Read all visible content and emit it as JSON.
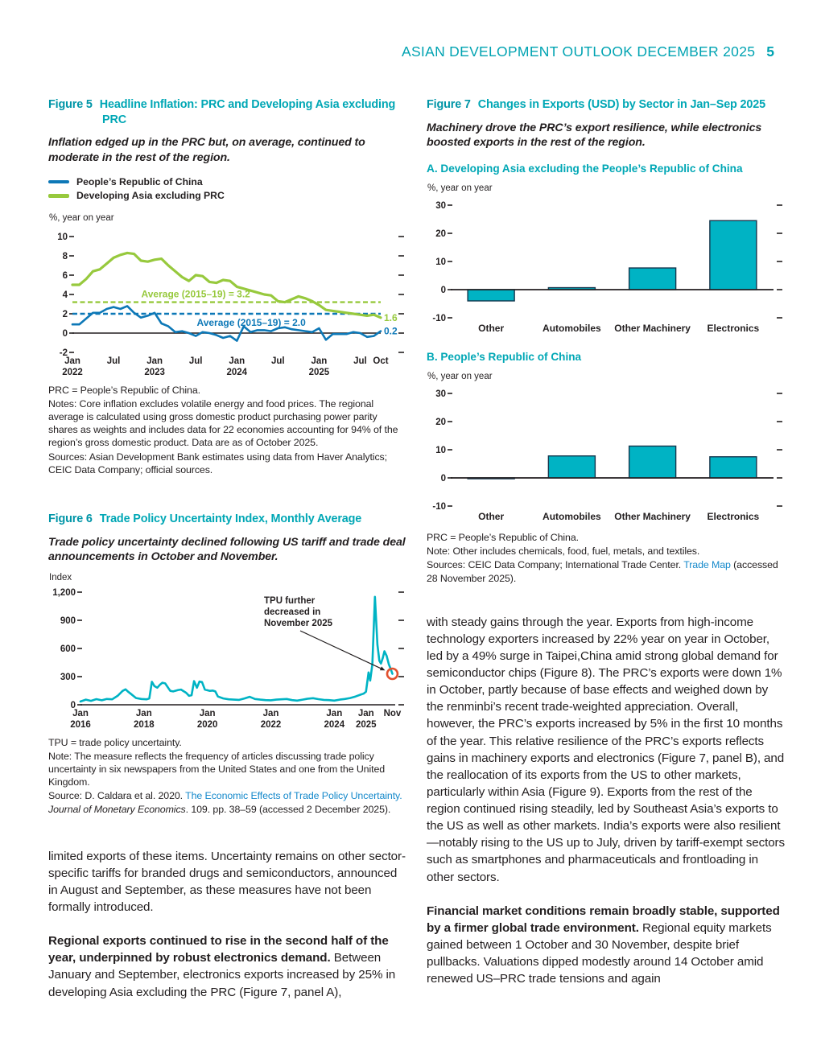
{
  "header": {
    "title": "ASIAN DEVELOPMENT OUTLOOK DECEMBER 2025",
    "page_number": "5"
  },
  "colors": {
    "teal_heading": "#00a7b5",
    "blue_line": "#0d78b7",
    "green_line": "#97c93d",
    "chart_teal": "#00b3c4",
    "red_circle": "#e2512e",
    "link_blue": "#1589cb",
    "text": "#231f20"
  },
  "figure5": {
    "label": "Figure 5",
    "title": "Headline Inflation: PRC and Developing Asia excluding PRC",
    "subtitle": "Inflation edged up in the PRC but, on average, continued to moderate in the rest of the region.",
    "legend": [
      {
        "label": "People’s Republic of China",
        "color": "#0d78b7"
      },
      {
        "label": "Developing Asia excluding PRC",
        "color": "#97c93d"
      }
    ],
    "notes": {
      "abbrev": "PRC = People’s Republic of China.",
      "note": "Notes: Core inflation excludes volatile energy and food prices. The regional average is calculated using gross domestic product purchasing power parity shares as weights and includes data for 22 economies accounting for 94% of the region’s gross domestic product. Data are as of October 2025.",
      "sources": "Sources: Asian Development Bank estimates using data from Haver Analytics; CEIC Data Company; official sources."
    }
  },
  "figure6": {
    "label": "Figure 6",
    "title": "Trade Policy Uncertainty Index, Monthly Average",
    "subtitle": "Trade policy uncertainty declined following US tariff and trade deal announcements in October and November.",
    "notes": {
      "abbrev": "TPU = trade policy uncertainty.",
      "note": "Note: The measure reflects the frequency of articles discussing trade policy uncertainty in six newspapers from the United States and one from the United Kingdom.",
      "source_segments": [
        {
          "t": "Source: D. Caldara et al. 2020. "
        },
        {
          "t": "The Economic Effects of Trade Policy Uncertainty.",
          "s": "link"
        },
        {
          "t": " "
        },
        {
          "t": "Journal of Monetary Economics",
          "s": "italic"
        },
        {
          "t": ". 109. pp. 38–59 (accessed 2 December 2025)."
        }
      ]
    }
  },
  "figure7": {
    "label": "Figure 7",
    "title": "Changes in Exports (USD) by Sector in Jan–Sep 2025",
    "subtitle": "Machinery drove the PRC’s export resilience, while electronics boosted exports in the rest of the region.",
    "panel_a_heading": "A. Developing Asia excluding the People’s Republic of China",
    "panel_b_heading": "B. People’s Republic of China",
    "notes": {
      "abbrev": "PRC = People’s Republic of China.",
      "note": "Note: Other includes chemicals, food, fuel, metals, and textiles.",
      "sources_segments": [
        {
          "t": "Sources: CEIC Data Company; International Trade Center. "
        },
        {
          "t": "Trade Map",
          "s": "link"
        },
        {
          "t": " (accessed 28 November 2025)."
        }
      ]
    }
  },
  "left_body": {
    "para1": [
      {
        "t": "limited exports of these items. Uncertainty remains on other sector-specific tariffs for branded drugs and semiconductors, announced in August and September, as these measures have not been formally introduced."
      }
    ],
    "para2": [
      {
        "t": "Regional exports continued to rise in the second half of the year, underpinned by robust electronics demand.",
        "s": "bold"
      },
      {
        "t": " Between January and September, electronics exports increased by 25% in developing Asia excluding the PRC (Figure 7, panel A),"
      }
    ]
  },
  "right_body": {
    "para1": [
      {
        "t": "with steady gains through the year. Exports from high-income technology exporters increased by 22% year on year in October, led by a 49% surge in Taipei,China amid strong global demand for semiconductor chips (Figure 8). The PRC’s exports were down 1% in October, partly because of base effects and weighed down by the renminbi’s recent trade-weighted appreciation. Overall, however, the PRC’s exports increased by 5% in the first 10 months of the year. This relative resilience of the PRC’s exports reflects gains in machinery exports and electronics (Figure 7, panel B), and the reallocation of its exports from the US to other markets, particularly within Asia (Figure 9). Exports from the rest of the region continued rising steadily, led by Southeast Asia’s exports to the US as well as other markets. India’s exports were also resilient—notably rising to the US up to July, driven by tariff-exempt sectors such as smartphones and pharmaceuticals and frontloading in other sectors."
      }
    ],
    "para2": [
      {
        "t": "Financial market conditions remain broadly stable, supported by a firmer global trade environment.",
        "s": "bold"
      },
      {
        "t": " Regional equity markets gained between 1 October and 30 November, despite brief pullbacks. Valuations dipped modestly around 14 October amid renewed US–PRC trade tensions and again"
      }
    ]
  },
  "chart_data": [
    {
      "id": "fig5",
      "type": "line",
      "title": "Headline Inflation: PRC and Developing Asia excluding PRC",
      "ylabel": "%, year on year",
      "ylim": [
        -2,
        10
      ],
      "yticks": [
        {
          "v": 10,
          "label": "10"
        },
        {
          "v": 8,
          "label": "8"
        },
        {
          "v": 6,
          "label": "6"
        },
        {
          "v": 4,
          "label": "4"
        },
        {
          "v": 2,
          "label": "2"
        },
        {
          "v": 0,
          "label": "0"
        },
        {
          "v": -2,
          "label": "-2"
        }
      ],
      "xticks": [
        {
          "i": 0,
          "l1": "Jan",
          "l2": "2022"
        },
        {
          "i": 6,
          "l1": "Jul"
        },
        {
          "i": 12,
          "l1": "Jan",
          "l2": "2023"
        },
        {
          "i": 18,
          "l1": "Jul"
        },
        {
          "i": 24,
          "l1": "Jan",
          "l2": "2024"
        },
        {
          "i": 30,
          "l1": "Jul"
        },
        {
          "i": 36,
          "l1": "Jan",
          "l2": "2025"
        },
        {
          "i": 42,
          "l1": "Jul"
        },
        {
          "i": 45,
          "l1": "Oct"
        }
      ],
      "avg_lines": [
        {
          "value": 3.2,
          "color": "#97c93d",
          "label": "Average (2015–19) = 3.2",
          "lx": 0.4,
          "above": true
        },
        {
          "value": 2.0,
          "color": "#0d78b7",
          "label": "Average (2015–19) = 2.0",
          "lx": 0.58,
          "above": false
        }
      ],
      "series": [
        {
          "name": "Developing Asia excluding PRC",
          "color": "#97c93d",
          "width": 3.2,
          "end_label": "1.6",
          "values": [
            5.0,
            5.0,
            5.6,
            6.4,
            6.6,
            7.2,
            7.8,
            8.1,
            8.3,
            8.2,
            7.5,
            7.4,
            7.6,
            7.7,
            7.0,
            6.4,
            5.8,
            5.4,
            6.0,
            5.9,
            5.3,
            5.2,
            5.5,
            5.4,
            4.8,
            4.6,
            4.4,
            4.2,
            4.0,
            3.9,
            3.3,
            3.2,
            3.5,
            3.8,
            3.6,
            3.3,
            2.9,
            2.4,
            2.3,
            2.2,
            2.1,
            2.0,
            1.9,
            1.8,
            1.9,
            1.6
          ]
        },
        {
          "name": "People’s Republic of China",
          "color": "#0d78b7",
          "width": 2.6,
          "end_label": "0.2",
          "values": [
            0.9,
            0.9,
            1.5,
            2.1,
            2.1,
            2.5,
            2.7,
            2.5,
            2.8,
            2.1,
            1.6,
            1.8,
            2.1,
            1.0,
            0.7,
            0.1,
            0.2,
            0.0,
            -0.3,
            0.1,
            0.0,
            -0.2,
            -0.5,
            -0.3,
            -0.8,
            0.7,
            0.1,
            0.3,
            0.3,
            0.2,
            0.5,
            0.6,
            0.4,
            0.3,
            0.2,
            0.1,
            0.5,
            -0.7,
            -0.1,
            -0.1,
            -0.1,
            0.1,
            0.0,
            -0.4,
            -0.3,
            0.2
          ]
        }
      ]
    },
    {
      "id": "fig6",
      "type": "line",
      "title": "Trade Policy Uncertainty Index, Monthly Average",
      "ylabel": "Index",
      "ylim": [
        0,
        1200
      ],
      "x_range": [
        2016,
        2025.92
      ],
      "yticks": [
        {
          "v": 1200,
          "label": "1,200"
        },
        {
          "v": 900,
          "label": "900"
        },
        {
          "v": 600,
          "label": "600"
        },
        {
          "v": 300,
          "label": "300"
        },
        {
          "v": 0,
          "label": "0"
        }
      ],
      "xticks": [
        {
          "x": 2016.0,
          "l1": "Jan",
          "l2": "2016"
        },
        {
          "x": 2018.0,
          "l1": "Jan",
          "l2": "2018"
        },
        {
          "x": 2020.0,
          "l1": "Jan",
          "l2": "2020"
        },
        {
          "x": 2022.0,
          "l1": "Jan",
          "l2": "2022"
        },
        {
          "x": 2024.0,
          "l1": "Jan",
          "l2": "2024"
        },
        {
          "x": 2025.0,
          "l1": "Jan",
          "l2": "2025"
        },
        {
          "x": 2025.83,
          "l1": "Nov"
        }
      ],
      "annotation": {
        "lines": [
          "TPU further",
          "decreased in",
          "November 2025"
        ],
        "circle_point": [
          2025.83,
          330
        ],
        "circle_color": "#e2512e"
      },
      "series": [
        {
          "name": "Trade Policy Uncertainty Index",
          "color": "#00b3c4",
          "width": 2.6,
          "points": [
            [
              2016.0,
              35
            ],
            [
              2016.17,
              55
            ],
            [
              2016.33,
              42
            ],
            [
              2016.5,
              60
            ],
            [
              2016.67,
              48
            ],
            [
              2016.83,
              62
            ],
            [
              2017.0,
              58
            ],
            [
              2017.17,
              95
            ],
            [
              2017.33,
              148
            ],
            [
              2017.42,
              165
            ],
            [
              2017.5,
              140
            ],
            [
              2017.58,
              118
            ],
            [
              2017.75,
              72
            ],
            [
              2017.92,
              62
            ],
            [
              2018.08,
              58
            ],
            [
              2018.17,
              68
            ],
            [
              2018.25,
              245
            ],
            [
              2018.33,
              200
            ],
            [
              2018.42,
              182
            ],
            [
              2018.5,
              212
            ],
            [
              2018.58,
              235
            ],
            [
              2018.67,
              228
            ],
            [
              2018.83,
              148
            ],
            [
              2018.92,
              142
            ],
            [
              2019.08,
              158
            ],
            [
              2019.17,
              162
            ],
            [
              2019.33,
              128
            ],
            [
              2019.42,
              96
            ],
            [
              2019.5,
              102
            ],
            [
              2019.58,
              252
            ],
            [
              2019.67,
              182
            ],
            [
              2019.75,
              248
            ],
            [
              2019.83,
              242
            ],
            [
              2019.92,
              162
            ],
            [
              2020.08,
              148
            ],
            [
              2020.17,
              152
            ],
            [
              2020.25,
              142
            ],
            [
              2020.33,
              88
            ],
            [
              2020.5,
              68
            ],
            [
              2020.67,
              58
            ],
            [
              2020.83,
              55
            ],
            [
              2021.0,
              52
            ],
            [
              2021.17,
              68
            ],
            [
              2021.33,
              85
            ],
            [
              2021.5,
              62
            ],
            [
              2021.67,
              55
            ],
            [
              2021.83,
              50
            ],
            [
              2022.0,
              48
            ],
            [
              2022.17,
              55
            ],
            [
              2022.33,
              58
            ],
            [
              2022.5,
              62
            ],
            [
              2022.67,
              50
            ],
            [
              2022.83,
              45
            ],
            [
              2023.0,
              55
            ],
            [
              2023.17,
              65
            ],
            [
              2023.33,
              70
            ],
            [
              2023.5,
              60
            ],
            [
              2023.67,
              52
            ],
            [
              2023.83,
              50
            ],
            [
              2024.0,
              45
            ],
            [
              2024.17,
              55
            ],
            [
              2024.33,
              62
            ],
            [
              2024.5,
              72
            ],
            [
              2024.67,
              88
            ],
            [
              2024.83,
              108
            ],
            [
              2024.92,
              118
            ],
            [
              2025.0,
              140
            ],
            [
              2025.08,
              345
            ],
            [
              2025.13,
              258
            ],
            [
              2025.2,
              430
            ],
            [
              2025.28,
              1150
            ],
            [
              2025.36,
              640
            ],
            [
              2025.42,
              470
            ],
            [
              2025.47,
              440
            ],
            [
              2025.53,
              500
            ],
            [
              2025.58,
              570
            ],
            [
              2025.65,
              520
            ],
            [
              2025.72,
              430
            ],
            [
              2025.78,
              380
            ],
            [
              2025.83,
              330
            ]
          ]
        }
      ]
    },
    {
      "id": "fig7a",
      "type": "bar",
      "title": "A. Developing Asia excluding the People’s Republic of China",
      "ylabel": "%, year on year",
      "ylim": [
        -10,
        30
      ],
      "yticks": [
        {
          "v": 30,
          "label": "30"
        },
        {
          "v": 20,
          "label": "20"
        },
        {
          "v": 10,
          "label": "10"
        },
        {
          "v": 0,
          "label": "0"
        },
        {
          "v": -10,
          "label": "-10"
        }
      ],
      "categories": [
        "Other",
        "Automobiles",
        "Other Machinery",
        "Electronics"
      ],
      "values": [
        -4.0,
        0.7,
        7.7,
        24.5
      ],
      "bar_color": "#00b3c4"
    },
    {
      "id": "fig7b",
      "type": "bar",
      "title": "B. People’s Republic of China",
      "ylabel": "%, year on year",
      "ylim": [
        -10,
        30
      ],
      "yticks": [
        {
          "v": 30,
          "label": "30"
        },
        {
          "v": 20,
          "label": "20"
        },
        {
          "v": 10,
          "label": "10"
        },
        {
          "v": 0,
          "label": "0"
        },
        {
          "v": -10,
          "label": "-10"
        }
      ],
      "categories": [
        "Other",
        "Automobiles",
        "Other Machinery",
        "Electronics"
      ],
      "values": [
        -0.3,
        7.8,
        11.3,
        7.5
      ],
      "bar_color": "#00b3c4"
    }
  ]
}
